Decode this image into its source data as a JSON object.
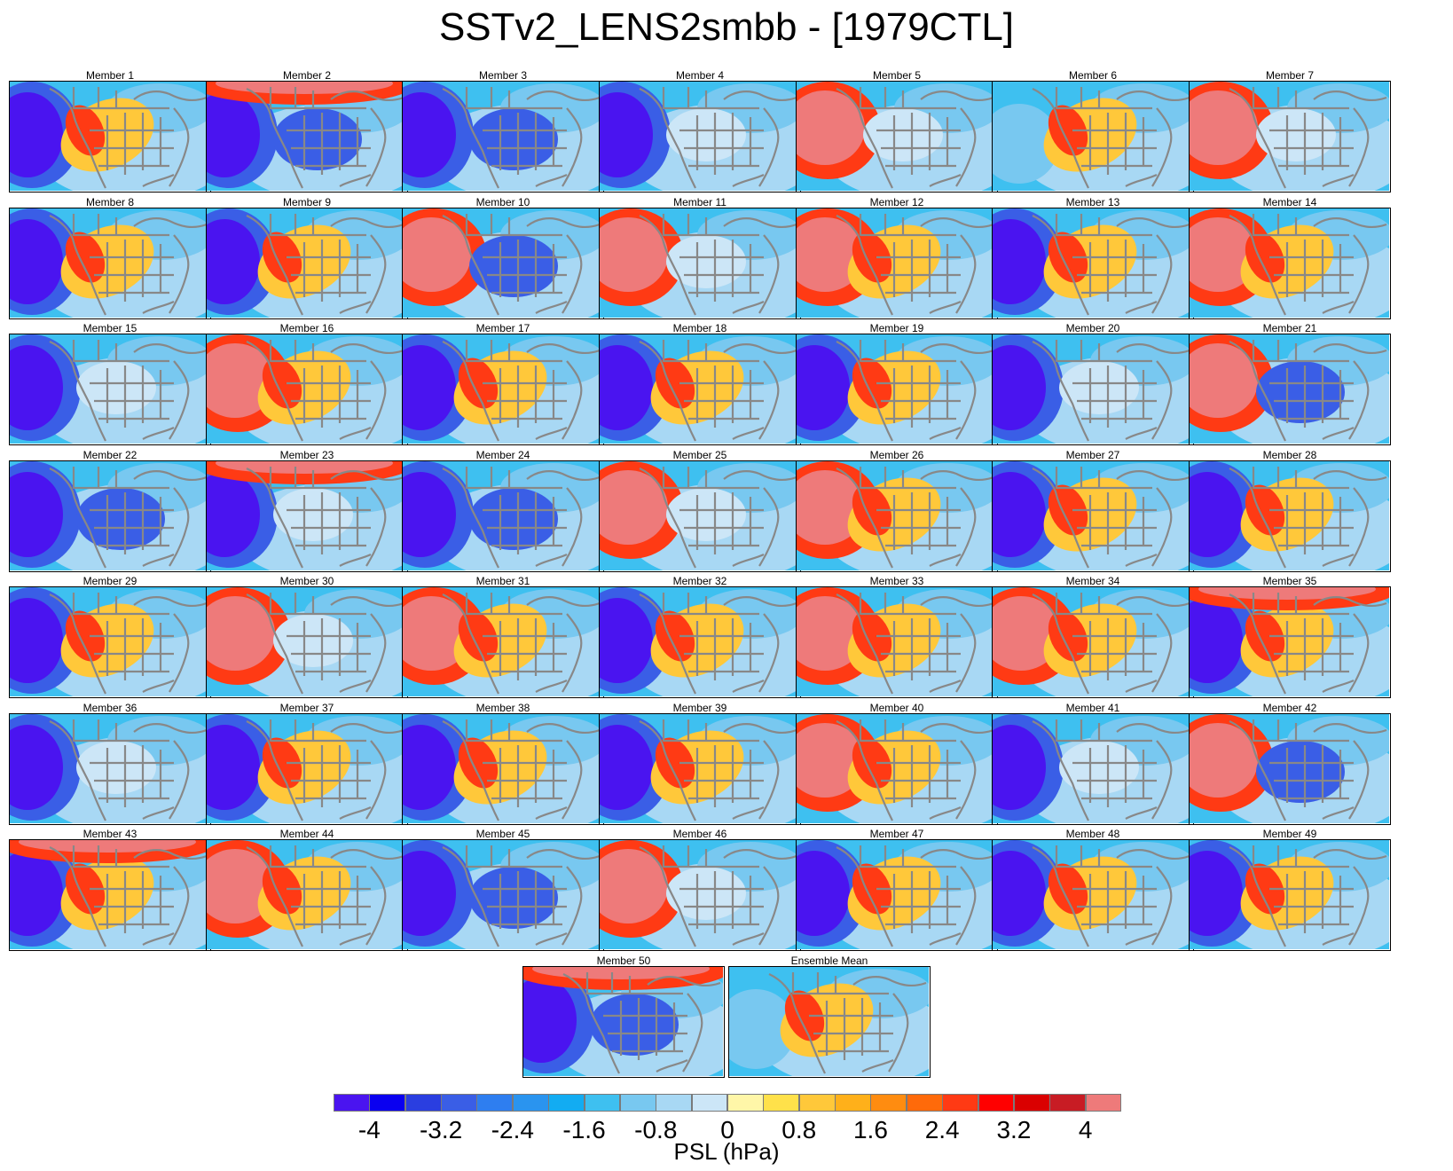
{
  "title": "SSTv2_LENS2smbb - [1979CTL]",
  "colorbar": {
    "label": "PSL (hPa)",
    "ticks": [
      "-4",
      "-3.2",
      "-2.4",
      "-1.6",
      "-0.8",
      "0",
      "0.8",
      "1.6",
      "2.4",
      "3.2",
      "4"
    ],
    "colors": [
      "#4a14f0",
      "#0a00f0",
      "#2a3ee0",
      "#3a5ee6",
      "#2e7ef0",
      "#2a94ef",
      "#12acf2",
      "#3ec0f0",
      "#78c8f0",
      "#a8d8f4",
      "#cce6f7",
      "#fff6a8",
      "#ffe14a",
      "#ffc83a",
      "#ffb01a",
      "#ff8c10",
      "#ff6a0a",
      "#ff3a14",
      "#ff0000",
      "#da0000",
      "#c81c24",
      "#ee7a7a"
    ],
    "map_lines": "#888888"
  },
  "panels": [
    {
      "label": "Member 1",
      "w": "lo",
      "c": "hi"
    },
    {
      "label": "Member 2",
      "w": "lo",
      "c": "lo",
      "n": "hi"
    },
    {
      "label": "Member 3",
      "w": "lo",
      "c": "lo"
    },
    {
      "label": "Member 4",
      "w": "lo",
      "c": "mid"
    },
    {
      "label": "Member 5",
      "w": "hi",
      "c": "mid"
    },
    {
      "label": "Member 6",
      "w": "mid",
      "c": "hi"
    },
    {
      "label": "Member 7",
      "w": "hi",
      "c": "mid"
    },
    {
      "label": "Member 8",
      "w": "lo",
      "c": "hi"
    },
    {
      "label": "Member 9",
      "w": "lo",
      "c": "hi"
    },
    {
      "label": "Member 10",
      "w": "hi",
      "c": "lo"
    },
    {
      "label": "Member 11",
      "w": "hi",
      "c": "mid"
    },
    {
      "label": "Member 12",
      "w": "hi",
      "c": "hi"
    },
    {
      "label": "Member 13",
      "w": "lo",
      "c": "hi"
    },
    {
      "label": "Member 14",
      "w": "hi",
      "c": "hi"
    },
    {
      "label": "Member 15",
      "w": "lo",
      "c": "mid"
    },
    {
      "label": "Member 16",
      "w": "hi",
      "c": "hi"
    },
    {
      "label": "Member 17",
      "w": "lo",
      "c": "hi"
    },
    {
      "label": "Member 18",
      "w": "lo",
      "c": "hi"
    },
    {
      "label": "Member 19",
      "w": "lo",
      "c": "hi"
    },
    {
      "label": "Member 20",
      "w": "lo",
      "c": "mid"
    },
    {
      "label": "Member 21",
      "w": "hi",
      "c": "lo"
    },
    {
      "label": "Member 22",
      "w": "lo",
      "c": "lo"
    },
    {
      "label": "Member 23",
      "w": "lo",
      "c": "mid",
      "n": "hi"
    },
    {
      "label": "Member 24",
      "w": "lo",
      "c": "lo"
    },
    {
      "label": "Member 25",
      "w": "hi",
      "c": "mid"
    },
    {
      "label": "Member 26",
      "w": "hi",
      "c": "hi"
    },
    {
      "label": "Member 27",
      "w": "lo",
      "c": "hi"
    },
    {
      "label": "Member 28",
      "w": "lo",
      "c": "hi"
    },
    {
      "label": "Member 29",
      "w": "lo",
      "c": "hi"
    },
    {
      "label": "Member 30",
      "w": "hi",
      "c": "mid"
    },
    {
      "label": "Member 31",
      "w": "hi",
      "c": "hi"
    },
    {
      "label": "Member 32",
      "w": "lo",
      "c": "hi"
    },
    {
      "label": "Member 33",
      "w": "hi",
      "c": "hi"
    },
    {
      "label": "Member 34",
      "w": "hi",
      "c": "hi"
    },
    {
      "label": "Member 35",
      "w": "lo",
      "c": "hi",
      "n": "hi"
    },
    {
      "label": "Member 36",
      "w": "lo",
      "c": "mid"
    },
    {
      "label": "Member 37",
      "w": "lo",
      "c": "hi"
    },
    {
      "label": "Member 38",
      "w": "lo",
      "c": "hi"
    },
    {
      "label": "Member 39",
      "w": "lo",
      "c": "hi"
    },
    {
      "label": "Member 40",
      "w": "hi",
      "c": "hi"
    },
    {
      "label": "Member 41",
      "w": "lo",
      "c": "mid"
    },
    {
      "label": "Member 42",
      "w": "hi",
      "c": "lo"
    },
    {
      "label": "Member 43",
      "w": "lo",
      "c": "hi",
      "n": "hi"
    },
    {
      "label": "Member 44",
      "w": "hi",
      "c": "hi"
    },
    {
      "label": "Member 45",
      "w": "lo",
      "c": "lo"
    },
    {
      "label": "Member 46",
      "w": "hi",
      "c": "mid"
    },
    {
      "label": "Member 47",
      "w": "lo",
      "c": "hi"
    },
    {
      "label": "Member 48",
      "w": "lo",
      "c": "hi"
    },
    {
      "label": "Member 49",
      "w": "lo",
      "c": "hi"
    },
    {
      "label": "Member 50",
      "w": "lo",
      "c": "lo",
      "n": "hi"
    },
    {
      "label": "Ensemble Mean",
      "w": "mid",
      "c": "hi"
    }
  ]
}
